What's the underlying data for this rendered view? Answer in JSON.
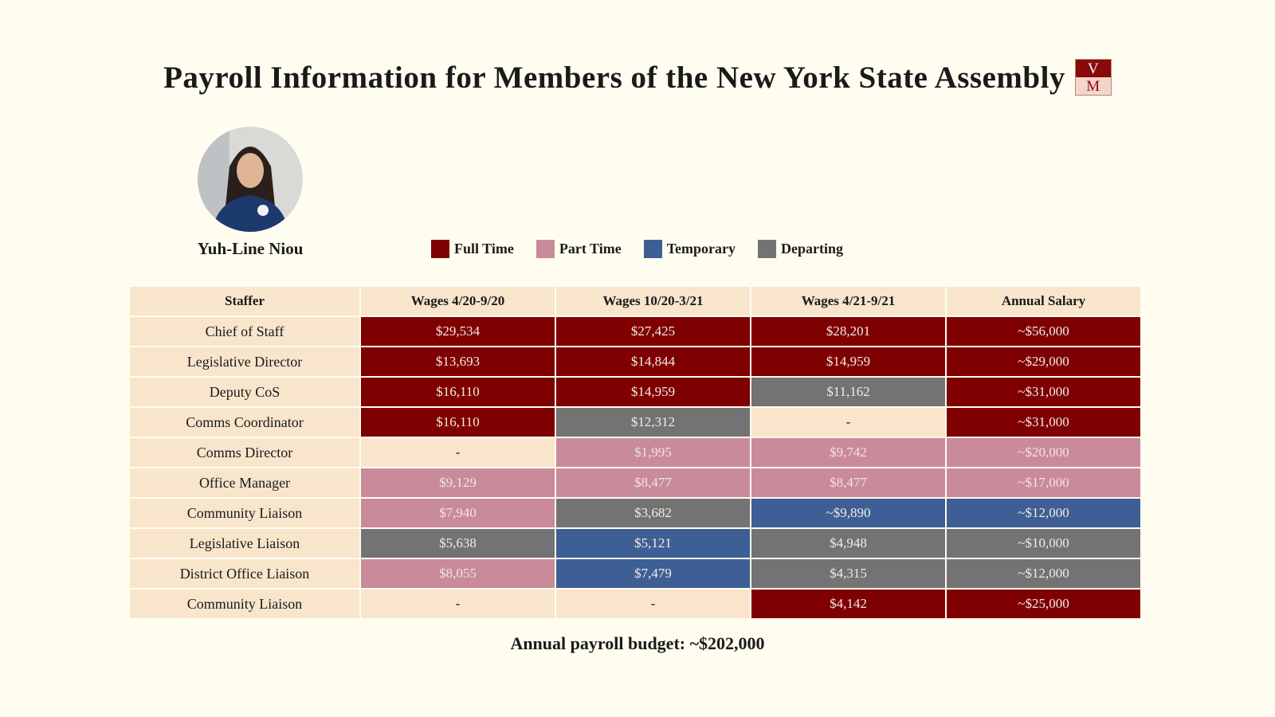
{
  "title": "Payroll Information for Members of the New York State Assembly",
  "logo": {
    "top": "V",
    "bottom": "M"
  },
  "member": {
    "name": "Yuh-Line Niou"
  },
  "legend": [
    {
      "label": "Full Time",
      "color": "#7f0000"
    },
    {
      "label": "Part Time",
      "color": "#c98a99"
    },
    {
      "label": "Temporary",
      "color": "#3d5f96"
    },
    {
      "label": "Departing",
      "color": "#737373"
    }
  ],
  "table": {
    "header": [
      "Staffer",
      "Wages 4/20-9/20",
      "Wages 10/20-3/21",
      "Wages 4/21-9/21",
      "Annual Salary"
    ],
    "rows": [
      {
        "staffer": "Chief of Staff",
        "cells": [
          {
            "text": "$29,534",
            "color": "#7f0000"
          },
          {
            "text": "$27,425",
            "color": "#7f0000"
          },
          {
            "text": "$28,201",
            "color": "#7f0000"
          },
          {
            "text": "~$56,000",
            "color": "#7f0000"
          }
        ]
      },
      {
        "staffer": "Legislative Director",
        "cells": [
          {
            "text": "$13,693",
            "color": "#7f0000"
          },
          {
            "text": "$14,844",
            "color": "#7f0000"
          },
          {
            "text": "$14,959",
            "color": "#7f0000"
          },
          {
            "text": "~$29,000",
            "color": "#7f0000"
          }
        ]
      },
      {
        "staffer": "Deputy CoS",
        "cells": [
          {
            "text": "$16,110",
            "color": "#7f0000"
          },
          {
            "text": "$14,959",
            "color": "#7f0000"
          },
          {
            "text": "$11,162",
            "color": "#737373"
          },
          {
            "text": "~$31,000",
            "color": "#7f0000"
          }
        ]
      },
      {
        "staffer": "Comms Coordinator",
        "cells": [
          {
            "text": "$16,110",
            "color": "#7f0000"
          },
          {
            "text": "$12,312",
            "color": "#737373"
          },
          {
            "text": "-",
            "color": "#f9e4cc"
          },
          {
            "text": "~$31,000",
            "color": "#7f0000"
          }
        ]
      },
      {
        "staffer": "Comms Director",
        "cells": [
          {
            "text": "-",
            "color": "#f9e4cc"
          },
          {
            "text": "$1,995",
            "color": "#c98a99"
          },
          {
            "text": "$9,742",
            "color": "#c98a99"
          },
          {
            "text": "~$20,000",
            "color": "#c98a99"
          }
        ]
      },
      {
        "staffer": "Office Manager",
        "cells": [
          {
            "text": "$9,129",
            "color": "#c98a99"
          },
          {
            "text": "$8,477",
            "color": "#c98a99"
          },
          {
            "text": "$8,477",
            "color": "#c98a99"
          },
          {
            "text": "~$17,000",
            "color": "#c98a99"
          }
        ]
      },
      {
        "staffer": "Community Liaison",
        "cells": [
          {
            "text": "$7,940",
            "color": "#c98a99"
          },
          {
            "text": "$3,682",
            "color": "#737373"
          },
          {
            "text": "~$9,890",
            "color": "#3d5f96"
          },
          {
            "text": "~$12,000",
            "color": "#3d5f96"
          }
        ]
      },
      {
        "staffer": "Legislative Liaison",
        "cells": [
          {
            "text": "$5,638",
            "color": "#737373"
          },
          {
            "text": "$5,121",
            "color": "#3d5f96"
          },
          {
            "text": "$4,948",
            "color": "#737373"
          },
          {
            "text": "~$10,000",
            "color": "#737373"
          }
        ]
      },
      {
        "staffer": "District Office Liaison",
        "cells": [
          {
            "text": "$8,055",
            "color": "#c98a99"
          },
          {
            "text": "$7,479",
            "color": "#3d5f96"
          },
          {
            "text": "$4,315",
            "color": "#737373"
          },
          {
            "text": "~$12,000",
            "color": "#737373"
          }
        ]
      },
      {
        "staffer": "Community Liaison",
        "cells": [
          {
            "text": "-",
            "color": "#f9e4cc"
          },
          {
            "text": "-",
            "color": "#f9e4cc"
          },
          {
            "text": "$4,142",
            "color": "#7f0000"
          },
          {
            "text": "~$25,000",
            "color": "#7f0000"
          }
        ]
      }
    ]
  },
  "footer": "Annual payroll budget: ~$202,000"
}
